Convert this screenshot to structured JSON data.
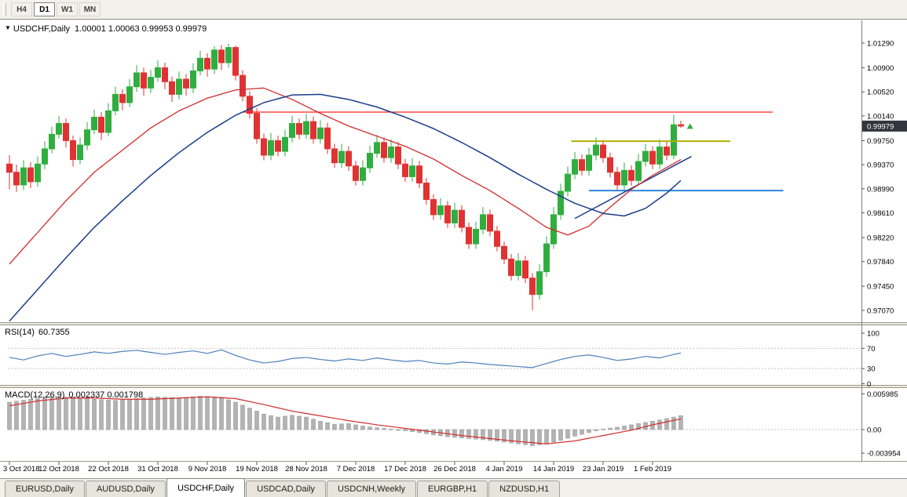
{
  "toolbar": {
    "buttons": [
      {
        "label": "H4",
        "active": false
      },
      {
        "label": "D1",
        "active": true
      },
      {
        "label": "W1",
        "active": false
      },
      {
        "label": "MN",
        "active": false
      }
    ]
  },
  "chart": {
    "title_symbol": "USDCHF,Daily",
    "ohlc_text": "1.00001 1.00063 0.99953 0.99979"
  },
  "rsi_panel": {
    "label": "RSI(14)",
    "value": "60.7355"
  },
  "macd_panel": {
    "label": "MACD(12,26,9)",
    "values": "0.002337 0.001798"
  },
  "tabs": [
    {
      "label": "EURUSD,Daily",
      "active": false
    },
    {
      "label": "AUDUSD,Daily",
      "active": false
    },
    {
      "label": "USDCHF,Daily",
      "active": true
    },
    {
      "label": "USDCAD,Daily",
      "active": false
    },
    {
      "label": "USDCNH,Weekly",
      "active": false
    },
    {
      "label": "EURGBP,H1",
      "active": false
    },
    {
      "label": "NZDUSD,H1",
      "active": false
    }
  ],
  "colors": {
    "bull": "#2fae3f",
    "bear": "#e03232",
    "ma_red": "#d22a2a",
    "ma_blue": "#1b3c8c",
    "rsi": "#4f81bd",
    "hist": "#b3b3b3",
    "hist_stroke": "#8f8f8f",
    "hline_red": "#ff2020",
    "hline_yellow": "#b0b000",
    "hline_blue": "#2e86de",
    "badge_bg": "#34343f",
    "grid_dot": "#c4c4c4",
    "frame": "#9a9890"
  },
  "chart_data": {
    "type": "candlestick",
    "symbol": "USDCHF",
    "timeframe": "Daily",
    "last_candle": {
      "open": 1.00001,
      "high": 1.00063,
      "low": 0.99953,
      "close": 0.99979
    },
    "current_price": 0.99979,
    "current_price_label": "0.99979",
    "price_axis_ticks": [
      "1.01290",
      "1.00900",
      "1.00520",
      "1.00140",
      "0.99750",
      "0.99370",
      "0.98990",
      "0.98610",
      "0.98220",
      "0.97840",
      "0.97450",
      "0.97070"
    ],
    "date_labels": [
      "3 Oct 2018",
      "12 Oct 2018",
      "22 Oct 2018",
      "31 Oct 2018",
      "9 Nov 2018",
      "19 Nov 2018",
      "28 Nov 2018",
      "7 Dec 2018",
      "17 Dec 2018",
      "26 Dec 2018",
      "4 Jan 2019",
      "14 Jan 2019",
      "23 Jan 2019",
      "1 Feb 2019"
    ],
    "candles": [
      [
        0.9938,
        0.9952,
        0.9898,
        0.9925
      ],
      [
        0.9925,
        0.9937,
        0.9894,
        0.9905
      ],
      [
        0.9905,
        0.9944,
        0.9897,
        0.9932
      ],
      [
        0.9932,
        0.9941,
        0.99,
        0.991
      ],
      [
        0.991,
        0.995,
        0.9902,
        0.9938
      ],
      [
        0.9938,
        0.9974,
        0.993,
        0.9962
      ],
      [
        0.9962,
        0.9997,
        0.9955,
        0.9985
      ],
      [
        0.9985,
        1.0014,
        0.9978,
        1.0002
      ],
      [
        1.0002,
        1.001,
        0.9964,
        0.9975
      ],
      [
        0.9975,
        0.9983,
        0.9934,
        0.9945
      ],
      [
        0.9945,
        0.998,
        0.9938,
        0.9968
      ],
      [
        0.9968,
        1.0004,
        0.996,
        0.9992
      ],
      [
        0.9992,
        1.0024,
        0.9985,
        1.0012
      ],
      [
        1.0012,
        1.002,
        0.9976,
        0.9988
      ],
      [
        0.9988,
        1.0034,
        0.9982,
        1.0022
      ],
      [
        1.0022,
        1.006,
        1.0015,
        1.0048
      ],
      [
        1.0048,
        1.0056,
        1.0023,
        1.0035
      ],
      [
        1.0035,
        1.0072,
        1.0028,
        1.006
      ],
      [
        1.006,
        1.0094,
        1.0052,
        1.0082
      ],
      [
        1.0082,
        1.009,
        1.0046,
        1.0058
      ],
      [
        1.0058,
        1.0087,
        1.005,
        1.0075
      ],
      [
        1.0075,
        1.0102,
        1.0068,
        1.009
      ],
      [
        1.009,
        1.0098,
        1.0056,
        1.0068
      ],
      [
        1.0068,
        1.0076,
        1.0036,
        1.0048
      ],
      [
        1.0048,
        1.0084,
        1.004,
        1.0072
      ],
      [
        1.0072,
        1.008,
        1.0046,
        1.0058
      ],
      [
        1.0058,
        1.0097,
        1.005,
        1.0085
      ],
      [
        1.0085,
        1.0117,
        1.0078,
        1.0105
      ],
      [
        1.0105,
        1.0113,
        1.0076,
        1.0088
      ],
      [
        1.0088,
        1.0124,
        1.008,
        1.0118
      ],
      [
        1.0118,
        1.0126,
        1.0086,
        1.0098
      ],
      [
        1.0098,
        1.0128,
        1.009,
        1.0122
      ],
      [
        1.0122,
        1.0125,
        1.007,
        1.0078
      ],
      [
        1.0078,
        1.0086,
        1.0037,
        1.0045
      ],
      [
        1.0045,
        1.0053,
        1.001,
        1.0018
      ],
      [
        1.0018,
        1.0026,
        0.997,
        0.9978
      ],
      [
        0.9978,
        0.9986,
        0.9944,
        0.9952
      ],
      [
        0.9952,
        0.9987,
        0.9944,
        0.9975
      ],
      [
        0.9975,
        0.9983,
        0.995,
        0.9958
      ],
      [
        0.9958,
        0.9992,
        0.995,
        0.998
      ],
      [
        0.998,
        1.0014,
        0.9972,
        1.0002
      ],
      [
        1.0002,
        1.001,
        0.9977,
        0.9985
      ],
      [
        0.9985,
        1.0017,
        0.9978,
        1.0005
      ],
      [
        1.0005,
        1.0013,
        0.997,
        0.9978
      ],
      [
        0.9978,
        1.0007,
        0.997,
        0.9995
      ],
      [
        0.9995,
        1.0003,
        0.9954,
        0.9962
      ],
      [
        0.9962,
        0.997,
        0.9932,
        0.994
      ],
      [
        0.994,
        0.997,
        0.9932,
        0.9958
      ],
      [
        0.9958,
        0.9966,
        0.9927,
        0.9935
      ],
      [
        0.9935,
        0.9943,
        0.9904,
        0.9912
      ],
      [
        0.9912,
        0.9944,
        0.9904,
        0.9932
      ],
      [
        0.9932,
        0.9967,
        0.9924,
        0.9955
      ],
      [
        0.9955,
        0.9984,
        0.9948,
        0.9972
      ],
      [
        0.9972,
        0.998,
        0.994,
        0.9948
      ],
      [
        0.9948,
        0.9977,
        0.994,
        0.9965
      ],
      [
        0.9965,
        0.9973,
        0.993,
        0.9938
      ],
      [
        0.9938,
        0.9946,
        0.991,
        0.9918
      ],
      [
        0.9918,
        0.9947,
        0.991,
        0.9935
      ],
      [
        0.9935,
        0.9943,
        0.99,
        0.9908
      ],
      [
        0.9908,
        0.9916,
        0.9874,
        0.9882
      ],
      [
        0.9882,
        0.989,
        0.985,
        0.9858
      ],
      [
        0.9858,
        0.9884,
        0.985,
        0.9872
      ],
      [
        0.9872,
        0.988,
        0.9837,
        0.9845
      ],
      [
        0.9845,
        0.9877,
        0.9837,
        0.9865
      ],
      [
        0.9865,
        0.9873,
        0.983,
        0.9838
      ],
      [
        0.9838,
        0.9846,
        0.9804,
        0.9812
      ],
      [
        0.9812,
        0.9847,
        0.9804,
        0.9835
      ],
      [
        0.9835,
        0.987,
        0.9827,
        0.9858
      ],
      [
        0.9858,
        0.9866,
        0.9824,
        0.9832
      ],
      [
        0.9832,
        0.984,
        0.98,
        0.9808
      ],
      [
        0.9808,
        0.9816,
        0.978,
        0.9788
      ],
      [
        0.9788,
        0.9796,
        0.9754,
        0.9762
      ],
      [
        0.9762,
        0.9797,
        0.9754,
        0.9785
      ],
      [
        0.9785,
        0.9793,
        0.975,
        0.9758
      ],
      [
        0.9758,
        0.9766,
        0.9707,
        0.9732
      ],
      [
        0.9732,
        0.978,
        0.9724,
        0.9768
      ],
      [
        0.9768,
        0.9824,
        0.976,
        0.9812
      ],
      [
        0.9812,
        0.987,
        0.9804,
        0.9858
      ],
      [
        0.9858,
        0.9907,
        0.985,
        0.9895
      ],
      [
        0.9895,
        0.9934,
        0.9887,
        0.9922
      ],
      [
        0.9922,
        0.9957,
        0.9914,
        0.9945
      ],
      [
        0.9945,
        0.9953,
        0.992,
        0.9928
      ],
      [
        0.9928,
        0.9964,
        0.992,
        0.9952
      ],
      [
        0.9952,
        0.998,
        0.9944,
        0.9968
      ],
      [
        0.9968,
        0.9976,
        0.994,
        0.9948
      ],
      [
        0.9948,
        0.9956,
        0.9917,
        0.9925
      ],
      [
        0.9925,
        0.9933,
        0.9897,
        0.9905
      ],
      [
        0.9905,
        0.994,
        0.9897,
        0.9928
      ],
      [
        0.9928,
        0.9936,
        0.9904,
        0.9912
      ],
      [
        0.9912,
        0.9954,
        0.9904,
        0.9942
      ],
      [
        0.9942,
        0.997,
        0.9934,
        0.9958
      ],
      [
        0.9958,
        0.9966,
        0.993,
        0.9938
      ],
      [
        0.9938,
        0.9977,
        0.993,
        0.9965
      ],
      [
        0.9965,
        0.9973,
        0.9944,
        0.9952
      ],
      [
        0.9952,
        1.0016,
        0.9946,
        1.0
      ],
      [
        1.00001,
        1.00063,
        0.99953,
        0.99979
      ]
    ],
    "ma_fast_red": [
      [
        0,
        0.978
      ],
      [
        4,
        0.983
      ],
      [
        8,
        0.988
      ],
      [
        12,
        0.9925
      ],
      [
        16,
        0.996
      ],
      [
        20,
        0.9995
      ],
      [
        24,
        1.0022
      ],
      [
        28,
        1.0042
      ],
      [
        32,
        1.0055
      ],
      [
        36,
        1.0058
      ],
      [
        40,
        1.004
      ],
      [
        44,
        1.0018
      ],
      [
        48,
        0.9998
      ],
      [
        52,
        0.9982
      ],
      [
        56,
        0.9966
      ],
      [
        60,
        0.9946
      ],
      [
        64,
        0.992
      ],
      [
        68,
        0.9896
      ],
      [
        72,
        0.9868
      ],
      [
        76,
        0.9838
      ],
      [
        79,
        0.9826
      ],
      [
        82,
        0.984
      ],
      [
        85,
        0.987
      ],
      [
        88,
        0.9898
      ],
      [
        91,
        0.992
      ],
      [
        95,
        0.9945
      ]
    ],
    "ma_slow_blue": [
      [
        0,
        0.969
      ],
      [
        4,
        0.974
      ],
      [
        8,
        0.979
      ],
      [
        12,
        0.9838
      ],
      [
        16,
        0.988
      ],
      [
        20,
        0.992
      ],
      [
        24,
        0.9956
      ],
      [
        28,
        0.9988
      ],
      [
        32,
        1.0015
      ],
      [
        36,
        1.0035
      ],
      [
        40,
        1.0047
      ],
      [
        44,
        1.0048
      ],
      [
        48,
        1.004
      ],
      [
        52,
        1.0028
      ],
      [
        56,
        1.0012
      ],
      [
        60,
        0.9994
      ],
      [
        64,
        0.9972
      ],
      [
        68,
        0.9948
      ],
      [
        72,
        0.9922
      ],
      [
        76,
        0.9898
      ],
      [
        80,
        0.9876
      ],
      [
        84,
        0.986
      ],
      [
        87,
        0.9856
      ],
      [
        90,
        0.9868
      ],
      [
        93,
        0.9892
      ],
      [
        95,
        0.9912
      ]
    ],
    "hlines": [
      {
        "name": "resistance-red",
        "price": 1.002,
        "x1_bar": 33,
        "x2_bar": 108,
        "color_key": "hline_red",
        "width": 1.2
      },
      {
        "name": "pivot-yellow",
        "price": 0.9974,
        "x1_bar": 79.5,
        "x2_bar": 102,
        "color_key": "hline_yellow",
        "width": 2
      },
      {
        "name": "support-blue",
        "price": 0.9896,
        "x1_bar": 82,
        "x2_bar": 109.5,
        "color_key": "hline_blue",
        "width": 2
      }
    ],
    "trendline": {
      "x1_bar": 80,
      "price1": 0.9852,
      "x2_bar": 96.5,
      "price2": 0.995,
      "color_key": "ma_blue",
      "width": 1.5
    },
    "marker": {
      "bar": 96.3,
      "price": 0.9996,
      "type": "up-arrow"
    },
    "rsi": {
      "period": 14,
      "last": 60.7355,
      "levels": [
        100,
        70,
        30,
        0
      ],
      "dotted_levels": [
        70,
        30
      ],
      "points": [
        [
          0,
          52
        ],
        [
          2,
          47
        ],
        [
          4,
          55
        ],
        [
          6,
          60
        ],
        [
          8,
          54
        ],
        [
          10,
          58
        ],
        [
          12,
          63
        ],
        [
          14,
          60
        ],
        [
          16,
          64
        ],
        [
          18,
          66
        ],
        [
          20,
          62
        ],
        [
          22,
          58
        ],
        [
          24,
          62
        ],
        [
          26,
          65
        ],
        [
          28,
          60
        ],
        [
          30,
          67
        ],
        [
          32,
          56
        ],
        [
          34,
          47
        ],
        [
          36,
          41
        ],
        [
          38,
          44
        ],
        [
          40,
          50
        ],
        [
          42,
          52
        ],
        [
          44,
          48
        ],
        [
          46,
          45
        ],
        [
          48,
          49
        ],
        [
          50,
          46
        ],
        [
          52,
          51
        ],
        [
          54,
          47
        ],
        [
          56,
          44
        ],
        [
          58,
          46
        ],
        [
          60,
          41
        ],
        [
          62,
          39
        ],
        [
          64,
          43
        ],
        [
          66,
          41
        ],
        [
          68,
          38
        ],
        [
          70,
          36
        ],
        [
          72,
          34
        ],
        [
          74,
          32
        ],
        [
          76,
          40
        ],
        [
          78,
          48
        ],
        [
          80,
          54
        ],
        [
          82,
          57
        ],
        [
          84,
          52
        ],
        [
          86,
          46
        ],
        [
          88,
          49
        ],
        [
          90,
          54
        ],
        [
          92,
          51
        ],
        [
          94,
          58
        ],
        [
          95,
          60.7
        ]
      ]
    },
    "macd": {
      "params": "12,26,9",
      "last_main": 0.002337,
      "last_signal": 0.001798,
      "axis": [
        "0.005985",
        "0.00",
        "-0.003954"
      ],
      "hist_points": [
        [
          0,
          0.0046
        ],
        [
          3,
          0.0051
        ],
        [
          6,
          0.0055
        ],
        [
          9,
          0.0054
        ],
        [
          12,
          0.0051
        ],
        [
          15,
          0.0049
        ],
        [
          18,
          0.0052
        ],
        [
          21,
          0.0055
        ],
        [
          24,
          0.0053
        ],
        [
          27,
          0.0056
        ],
        [
          30,
          0.0054
        ],
        [
          32,
          0.0046
        ],
        [
          34,
          0.0036
        ],
        [
          36,
          0.0026
        ],
        [
          38,
          0.0021
        ],
        [
          40,
          0.0024
        ],
        [
          42,
          0.0021
        ],
        [
          44,
          0.0014
        ],
        [
          46,
          0.0009
        ],
        [
          48,
          0.001
        ],
        [
          50,
          0.0006
        ],
        [
          52,
          0.0003
        ],
        [
          54,
          0.0001
        ],
        [
          56,
          -0.0002
        ],
        [
          58,
          -0.0005
        ],
        [
          60,
          -0.0009
        ],
        [
          62,
          -0.0012
        ],
        [
          64,
          -0.0014
        ],
        [
          66,
          -0.0016
        ],
        [
          68,
          -0.0018
        ],
        [
          70,
          -0.0021
        ],
        [
          72,
          -0.0024
        ],
        [
          74,
          -0.0027
        ],
        [
          76,
          -0.0024
        ],
        [
          78,
          -0.0018
        ],
        [
          80,
          -0.0011
        ],
        [
          82,
          -0.0005
        ],
        [
          84,
          0.0001
        ],
        [
          86,
          0.0004
        ],
        [
          88,
          0.0008
        ],
        [
          90,
          0.0012
        ],
        [
          92,
          0.0016
        ],
        [
          94,
          0.0021
        ],
        [
          95,
          0.00234
        ]
      ],
      "signal_points": [
        [
          0,
          0.004
        ],
        [
          4,
          0.0048
        ],
        [
          8,
          0.0053
        ],
        [
          12,
          0.0053
        ],
        [
          16,
          0.0051
        ],
        [
          20,
          0.0051
        ],
        [
          24,
          0.0053
        ],
        [
          28,
          0.0055
        ],
        [
          32,
          0.0052
        ],
        [
          36,
          0.0042
        ],
        [
          40,
          0.0031
        ],
        [
          44,
          0.0023
        ],
        [
          48,
          0.0015
        ],
        [
          52,
          0.0008
        ],
        [
          56,
          0.0002
        ],
        [
          60,
          -0.0004
        ],
        [
          64,
          -0.001
        ],
        [
          68,
          -0.0015
        ],
        [
          72,
          -0.002
        ],
        [
          76,
          -0.0024
        ],
        [
          80,
          -0.0019
        ],
        [
          84,
          -0.001
        ],
        [
          88,
          -0.0001
        ],
        [
          91,
          0.0008
        ],
        [
          93,
          0.0013
        ],
        [
          95,
          0.0018
        ]
      ]
    }
  }
}
